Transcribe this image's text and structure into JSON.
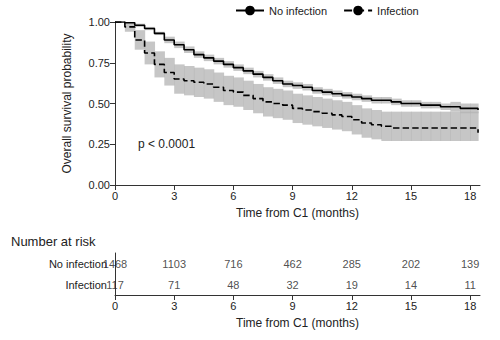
{
  "chart_data": {
    "type": "line",
    "xlabel": "Time from C1 (months)",
    "ylabel": "Overall survival probability",
    "legend": "top",
    "grid": false,
    "annotations": [
      "p < 0.0001"
    ],
    "xlim": [
      0,
      18.5
    ],
    "xticks": [
      0,
      3,
      6,
      9,
      12,
      15,
      18
    ],
    "ylim": [
      0,
      1
    ],
    "yticks": [
      {
        "value": 0,
        "label": "0.00"
      },
      {
        "value": 0.25,
        "label": "0.25"
      },
      {
        "value": 0.5,
        "label": "0.50"
      },
      {
        "value": 0.75,
        "label": "0.75"
      },
      {
        "value": 1,
        "label": "1.00"
      }
    ],
    "x": [
      0,
      0.5,
      1,
      1.5,
      2,
      2.5,
      3,
      3.5,
      4,
      4.5,
      5,
      5.5,
      6,
      6.5,
      7,
      7.5,
      8,
      8.5,
      9,
      9.5,
      10,
      10.5,
      11,
      11.5,
      12,
      12.5,
      13,
      13.5,
      14,
      14.5,
      15,
      15.5,
      16,
      16.5,
      17,
      17.5,
      18,
      18.4
    ],
    "series": [
      {
        "name": "No infection",
        "color": "#000000",
        "line_style": "solid",
        "values": [
          1.0,
          0.995,
          0.98,
          0.96,
          0.93,
          0.89,
          0.86,
          0.83,
          0.8,
          0.78,
          0.76,
          0.74,
          0.72,
          0.7,
          0.68,
          0.66,
          0.64,
          0.62,
          0.61,
          0.6,
          0.58,
          0.57,
          0.56,
          0.55,
          0.54,
          0.53,
          0.52,
          0.52,
          0.51,
          0.5,
          0.5,
          0.49,
          0.49,
          0.48,
          0.48,
          0.47,
          0.47,
          0.46
        ],
        "ci_lower": [
          1.0,
          0.99,
          0.97,
          0.95,
          0.92,
          0.87,
          0.84,
          0.81,
          0.78,
          0.76,
          0.74,
          0.72,
          0.7,
          0.68,
          0.66,
          0.64,
          0.62,
          0.6,
          0.59,
          0.58,
          0.56,
          0.55,
          0.54,
          0.53,
          0.52,
          0.51,
          0.5,
          0.5,
          0.49,
          0.48,
          0.48,
          0.47,
          0.47,
          0.46,
          0.45,
          0.44,
          0.44,
          0.43
        ],
        "ci_upper": [
          1.0,
          1.0,
          0.99,
          0.97,
          0.94,
          0.91,
          0.88,
          0.85,
          0.82,
          0.8,
          0.78,
          0.76,
          0.74,
          0.72,
          0.7,
          0.68,
          0.66,
          0.64,
          0.63,
          0.62,
          0.6,
          0.59,
          0.58,
          0.57,
          0.56,
          0.55,
          0.54,
          0.54,
          0.53,
          0.52,
          0.52,
          0.51,
          0.51,
          0.5,
          0.51,
          0.5,
          0.5,
          0.49
        ]
      },
      {
        "name": "Infection",
        "color": "#000000",
        "line_style": "dashed",
        "values": [
          1.0,
          0.97,
          0.89,
          0.81,
          0.74,
          0.69,
          0.65,
          0.64,
          0.63,
          0.62,
          0.6,
          0.58,
          0.57,
          0.55,
          0.53,
          0.51,
          0.5,
          0.49,
          0.47,
          0.46,
          0.45,
          0.44,
          0.43,
          0.42,
          0.4,
          0.38,
          0.37,
          0.36,
          0.35,
          0.35,
          0.35,
          0.35,
          0.35,
          0.35,
          0.35,
          0.35,
          0.35,
          0.32
        ],
        "ci_lower": [
          1.0,
          0.94,
          0.83,
          0.74,
          0.66,
          0.61,
          0.56,
          0.55,
          0.54,
          0.53,
          0.51,
          0.49,
          0.48,
          0.46,
          0.44,
          0.42,
          0.41,
          0.4,
          0.38,
          0.37,
          0.36,
          0.35,
          0.34,
          0.33,
          0.31,
          0.29,
          0.28,
          0.27,
          0.27,
          0.27,
          0.27,
          0.27,
          0.27,
          0.27,
          0.27,
          0.27,
          0.27,
          0.25
        ],
        "ci_upper": [
          1.0,
          0.99,
          0.95,
          0.88,
          0.82,
          0.78,
          0.74,
          0.73,
          0.72,
          0.71,
          0.69,
          0.67,
          0.66,
          0.64,
          0.62,
          0.6,
          0.59,
          0.58,
          0.56,
          0.55,
          0.54,
          0.53,
          0.52,
          0.51,
          0.49,
          0.47,
          0.46,
          0.45,
          0.45,
          0.45,
          0.45,
          0.45,
          0.45,
          0.45,
          0.45,
          0.45,
          0.45,
          0.41
        ]
      }
    ],
    "risk_table": {
      "title": "Number at risk",
      "xlabel": "Time from C1 (months)",
      "times": [
        0,
        3,
        6,
        9,
        12,
        15,
        18
      ],
      "rows": [
        {
          "name": "No infection",
          "values": [
            1468,
            1103,
            716,
            462,
            285,
            202,
            139
          ]
        },
        {
          "name": "Infection",
          "values": [
            117,
            71,
            48,
            32,
            19,
            14,
            11
          ]
        }
      ]
    }
  }
}
